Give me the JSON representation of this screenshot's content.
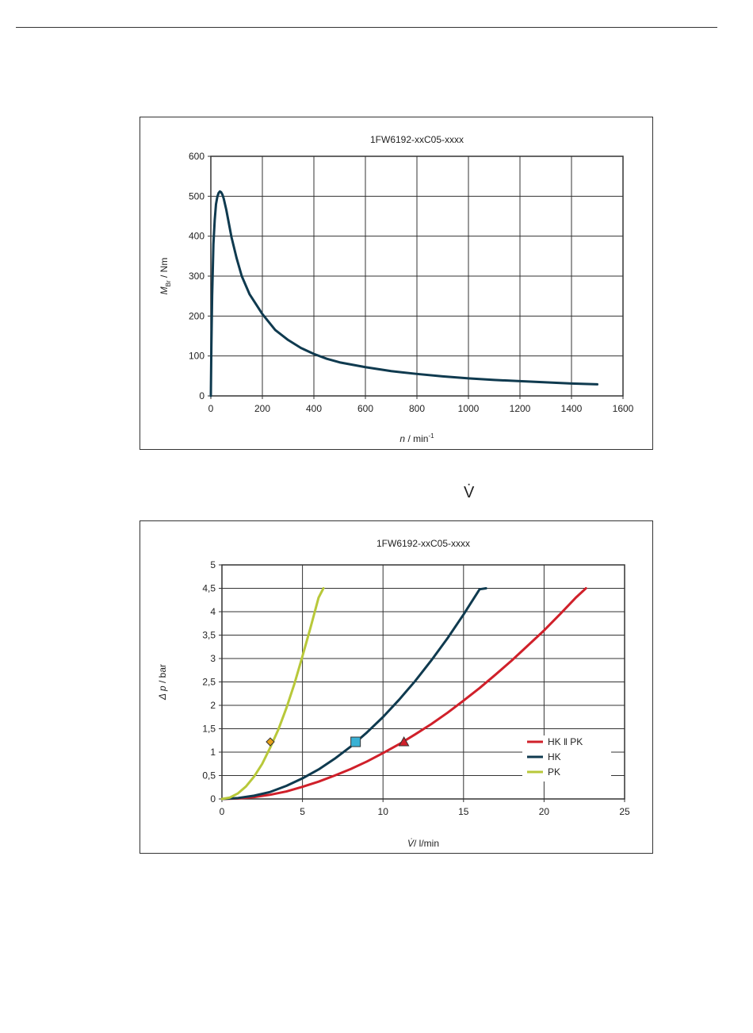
{
  "orphan_symbol": "V̇",
  "chart_data": [
    {
      "type": "line",
      "title": "1FW6192-xxC05-xxxx",
      "xlabel": {
        "var": "n",
        "unit": " / min",
        "sup": "-1"
      },
      "ylabel": {
        "var": "M",
        "sub": "Br",
        "unit": " / Nm"
      },
      "xlim": [
        0,
        1600
      ],
      "ylim": [
        0,
        600
      ],
      "xticks": [
        0,
        200,
        400,
        600,
        800,
        1000,
        1200,
        1400,
        1600
      ],
      "yticks": [
        0,
        100,
        200,
        300,
        400,
        500,
        600
      ],
      "grid": true,
      "series": [
        {
          "color": "#0f3a4f",
          "x": [
            0,
            2,
            5,
            10,
            15,
            20,
            25,
            30,
            35,
            40,
            45,
            50,
            60,
            70,
            80,
            100,
            120,
            150,
            200,
            250,
            300,
            350,
            400,
            450,
            500,
            600,
            700,
            800,
            900,
            1000,
            1100,
            1200,
            1300,
            1400,
            1500
          ],
          "y": [
            0,
            120,
            250,
            380,
            440,
            480,
            498,
            508,
            512,
            510,
            504,
            494,
            466,
            432,
            398,
            345,
            300,
            255,
            205,
            165,
            140,
            120,
            105,
            93,
            84,
            72,
            62,
            55,
            49,
            44,
            40,
            37,
            34,
            31,
            29
          ]
        }
      ]
    },
    {
      "type": "line",
      "title": "1FW6192-xxC05-xxxx",
      "xlabel": {
        "var": "V̇",
        "unit": "/ l/min"
      },
      "ylabel": {
        "var": "Δ p",
        "unit": " / bar"
      },
      "xlim": [
        0,
        25
      ],
      "ylim": [
        0,
        5
      ],
      "xticks": [
        "0",
        "5",
        "10",
        "15",
        "20",
        "25"
      ],
      "yticks": [
        "0",
        "0,5",
        "1",
        "1,5",
        "2",
        "2,5",
        "3",
        "3,5",
        "4",
        "4,5",
        "5"
      ],
      "grid": true,
      "legend": "bottom-right",
      "series": [
        {
          "name": "HK ‖ PK",
          "color": "#d0202a",
          "x": [
            0,
            1,
            2,
            3,
            4,
            5,
            6,
            7,
            8,
            9,
            10,
            11,
            12,
            13,
            14,
            15,
            16,
            17,
            18,
            19,
            20,
            21,
            22,
            22.6
          ],
          "y": [
            0,
            0.01,
            0.04,
            0.09,
            0.16,
            0.26,
            0.37,
            0.5,
            0.64,
            0.8,
            0.98,
            1.17,
            1.38,
            1.6,
            1.84,
            2.1,
            2.37,
            2.66,
            2.96,
            3.28,
            3.6,
            3.95,
            4.31,
            4.5
          ]
        },
        {
          "name": "HK",
          "color": "#0f3a4f",
          "x": [
            0,
            1,
            2,
            3,
            4,
            5,
            6,
            7,
            8,
            9,
            10,
            11,
            12,
            13,
            14,
            15,
            16,
            16.4
          ],
          "y": [
            0,
            0.02,
            0.07,
            0.15,
            0.28,
            0.44,
            0.63,
            0.86,
            1.12,
            1.42,
            1.75,
            2.12,
            2.52,
            2.96,
            3.43,
            3.94,
            4.48,
            4.5
          ]
        },
        {
          "name": "PK",
          "color": "#b8c83a",
          "x": [
            0,
            0.5,
            1,
            1.5,
            2,
            2.5,
            3,
            3.5,
            4,
            4.5,
            5,
            5.5,
            6,
            6.3
          ],
          "y": [
            0,
            0.03,
            0.12,
            0.27,
            0.48,
            0.75,
            1.1,
            1.48,
            1.94,
            2.46,
            3.05,
            3.66,
            4.3,
            4.5
          ]
        }
      ],
      "markers": [
        {
          "shape": "diamond",
          "x": 3,
          "y": 1.22,
          "fill": "#e8a21a"
        },
        {
          "shape": "square",
          "x": 8.3,
          "y": 1.22,
          "fill": "#39b1d4"
        },
        {
          "shape": "triangle",
          "x": 11.3,
          "y": 1.22,
          "fill": "#d0202a"
        }
      ]
    }
  ]
}
